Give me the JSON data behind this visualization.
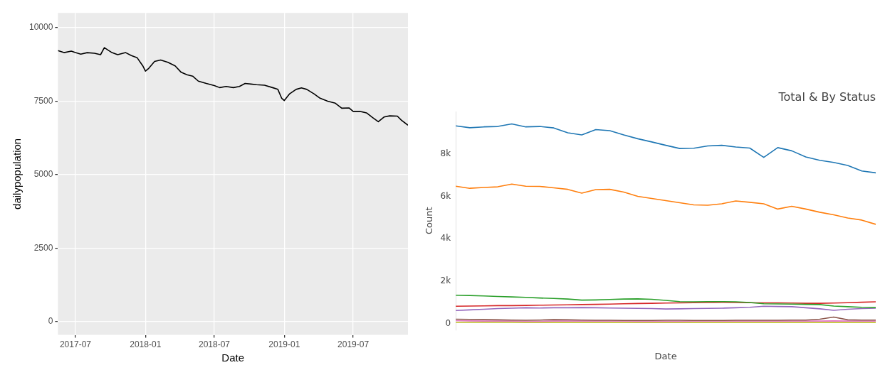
{
  "chart_data": [
    {
      "type": "line",
      "xlabel": "Date",
      "ylabel": "dailypopulation",
      "color": "#000000",
      "grid": true,
      "x": [
        "2017-05-16",
        "2017-06-01",
        "2017-06-20",
        "2017-07-01",
        "2017-07-15",
        "2017-08-01",
        "2017-08-20",
        "2017-09-05",
        "2017-09-15",
        "2017-10-05",
        "2017-10-20",
        "2017-11-10",
        "2017-11-25",
        "2017-12-10",
        "2017-12-25",
        "2018-01-01",
        "2018-01-10",
        "2018-01-25",
        "2018-02-10",
        "2018-03-01",
        "2018-03-20",
        "2018-04-05",
        "2018-04-20",
        "2018-05-05",
        "2018-05-20",
        "2018-06-10",
        "2018-07-01",
        "2018-07-15",
        "2018-08-01",
        "2018-08-20",
        "2018-09-05",
        "2018-09-20",
        "2018-10-05",
        "2018-10-20",
        "2018-11-10",
        "2018-12-01",
        "2018-12-15",
        "2018-12-25",
        "2019-01-01",
        "2019-01-15",
        "2019-02-01",
        "2019-02-15",
        "2019-03-01",
        "2019-03-20",
        "2019-04-05",
        "2019-04-25",
        "2019-05-15",
        "2019-06-01",
        "2019-06-20",
        "2019-07-01",
        "2019-07-20",
        "2019-08-05",
        "2019-08-20",
        "2019-09-05",
        "2019-09-20",
        "2019-10-05",
        "2019-10-25",
        "2019-11-05",
        "2019-11-22"
      ],
      "values": [
        9220,
        9150,
        9200,
        9150,
        9100,
        9150,
        9130,
        9080,
        9320,
        9150,
        9080,
        9150,
        9050,
        8980,
        8700,
        8520,
        8620,
        8850,
        8900,
        8820,
        8700,
        8480,
        8400,
        8350,
        8180,
        8100,
        8030,
        7960,
        8000,
        7960,
        8000,
        8100,
        8080,
        8060,
        8040,
        7960,
        7900,
        7600,
        7520,
        7750,
        7900,
        7950,
        7900,
        7750,
        7600,
        7500,
        7430,
        7260,
        7270,
        7150,
        7150,
        7100,
        6950,
        6800,
        6960,
        7000,
        6990,
        6850,
        6680
      ],
      "xlim": [
        "2017-05-16",
        "2019-11-22"
      ],
      "xticks": [
        "2017-07",
        "2018-01",
        "2018-07",
        "2019-01",
        "2019-07"
      ],
      "ylim": [
        -450,
        10500
      ],
      "yticks": [
        0,
        2500,
        5000,
        7500,
        10000
      ]
    },
    {
      "type": "line",
      "title": "Total & By Status",
      "xlabel": "Date",
      "ylabel": "Count",
      "grid": false,
      "tick_labels": "y",
      "ylim": [
        -300,
        10000
      ],
      "categories": [
        null,
        null,
        null,
        null,
        null,
        null,
        null,
        null,
        null,
        null,
        null,
        null,
        null,
        null,
        null,
        null,
        null,
        null,
        null,
        null,
        null,
        null,
        null,
        null,
        null,
        null,
        null,
        null,
        null,
        null,
        null
      ],
      "yticks": [
        {
          "value": 0,
          "label": "0"
        },
        {
          "value": 2000,
          "label": "2k"
        },
        {
          "value": 4000,
          "label": "4k"
        },
        {
          "value": 6000,
          "label": "6k"
        },
        {
          "value": 8000,
          "label": "8k"
        }
      ],
      "series": [
        {
          "color": "#1f77b4",
          "values": [
            9330,
            9240,
            9280,
            9300,
            9420,
            9280,
            9300,
            9230,
            9000,
            8900,
            9150,
            9100,
            8900,
            8720,
            8570,
            8410,
            8260,
            8270,
            8380,
            8410,
            8330,
            8280,
            7840,
            8300,
            8150,
            7860,
            7700,
            7600,
            7460,
            7200,
            7110
          ]
        },
        {
          "color": "#ff7f0e",
          "values": [
            6480,
            6380,
            6420,
            6450,
            6580,
            6480,
            6470,
            6400,
            6330,
            6150,
            6320,
            6330,
            6200,
            6000,
            5900,
            5800,
            5700,
            5600,
            5580,
            5650,
            5780,
            5720,
            5650,
            5400,
            5530,
            5400,
            5250,
            5130,
            4980,
            4880,
            4680
          ]
        },
        {
          "color": "#2ca02c",
          "values": [
            1330,
            1320,
            1300,
            1270,
            1250,
            1230,
            1200,
            1180,
            1150,
            1100,
            1110,
            1130,
            1150,
            1160,
            1140,
            1090,
            1030,
            1020,
            1030,
            1030,
            1020,
            990,
            930,
            920,
            910,
            900,
            890,
            820,
            790,
            760,
            750
          ]
        },
        {
          "color": "#d62728",
          "values": [
            810,
            820,
            830,
            840,
            840,
            850,
            860,
            870,
            880,
            890,
            900,
            910,
            930,
            940,
            950,
            960,
            970,
            980,
            990,
            1000,
            990,
            980,
            970,
            970,
            960,
            950,
            950,
            960,
            980,
            1000,
            1020
          ]
        },
        {
          "color": "#9467bd",
          "values": [
            610,
            640,
            670,
            700,
            720,
            740,
            730,
            740,
            740,
            750,
            740,
            730,
            720,
            710,
            700,
            680,
            690,
            700,
            710,
            720,
            740,
            760,
            810,
            800,
            790,
            740,
            690,
            620,
            670,
            700,
            720
          ]
        },
        {
          "color": "#8c564b",
          "values": [
            200,
            190,
            180,
            170,
            160,
            150,
            160,
            180,
            170,
            160,
            150,
            150,
            140,
            140,
            140,
            150,
            150,
            140,
            140,
            140,
            150,
            150,
            150,
            150,
            160,
            160,
            200,
            300,
            170,
            160,
            160
          ]
        },
        {
          "color": "#e377c2",
          "values": [
            130,
            120,
            110,
            110,
            110,
            100,
            100,
            110,
            110,
            110,
            110,
            110,
            110,
            100,
            100,
            100,
            100,
            110,
            110,
            110,
            110,
            110,
            110,
            110,
            110,
            110,
            110,
            120,
            110,
            110,
            110
          ]
        },
        {
          "color": "#bcbd22",
          "values": [
            50,
            50,
            50,
            50,
            50,
            40,
            40,
            40,
            40,
            40,
            40,
            40,
            40,
            40,
            40,
            40,
            40,
            40,
            40,
            40,
            40,
            40,
            40,
            40,
            40,
            40,
            40,
            40,
            40,
            40,
            40
          ]
        }
      ]
    }
  ]
}
